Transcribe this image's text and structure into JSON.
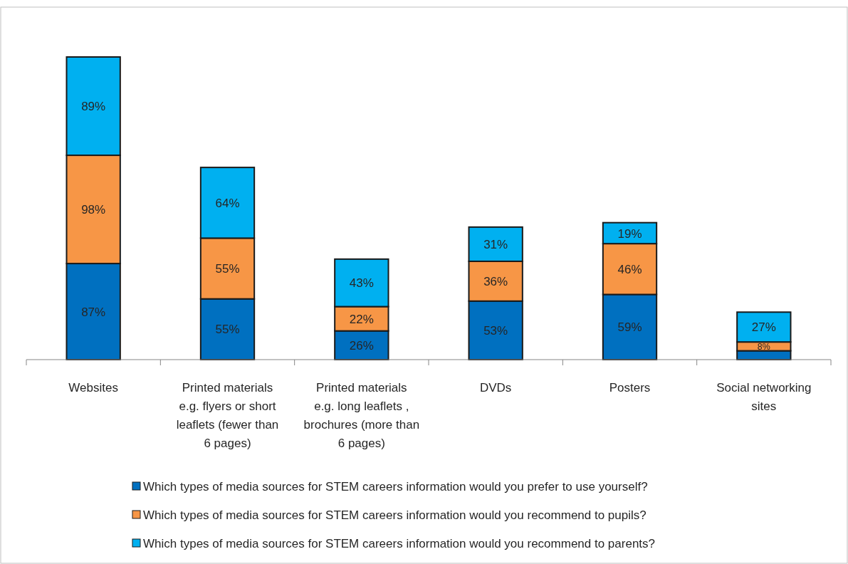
{
  "chart_data": {
    "type": "bar",
    "stacked": true,
    "legend": "bottom",
    "categories": [
      "Websites",
      "Printed materials e.g. flyers or short leaflets (fewer than 6 pages)",
      "Printed materials e.g. long leaflets , brochures (more than 6 pages)",
      "DVDs",
      "Posters",
      "Social networking sites"
    ],
    "series": [
      {
        "name": "Which types of media sources for STEM careers information would you prefer to use yourself?",
        "color": "#0070c0",
        "values": [
          87,
          55,
          26,
          53,
          59,
          8
        ],
        "value_labels": [
          "87%",
          "55%",
          "26%",
          "53%",
          "59%",
          null
        ]
      },
      {
        "name": "Which types of media sources for STEM careers information would you recommend to pupils?",
        "color": "#f79646",
        "values": [
          98,
          55,
          22,
          36,
          46,
          8
        ],
        "value_labels": [
          "98%",
          "55%",
          "22%",
          "36%",
          "46%",
          "8%"
        ]
      },
      {
        "name": "Which types of media sources for STEM careers information would you recommend to parents?",
        "color": "#00b0f0",
        "values": [
          89,
          64,
          43,
          31,
          19,
          27
        ],
        "value_labels": [
          "89%",
          "64%",
          "43%",
          "31%",
          "19%",
          "27%"
        ]
      }
    ]
  }
}
